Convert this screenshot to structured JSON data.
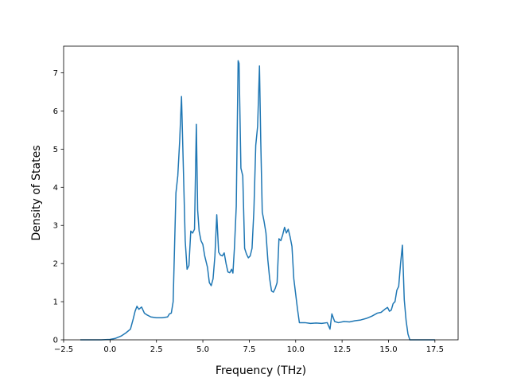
{
  "chart_data": {
    "type": "line",
    "title": "",
    "xlabel": "Frequency (THz)",
    "ylabel": "Density of States",
    "xlim": [
      -2.5,
      18.75
    ],
    "ylim": [
      0,
      7.7
    ],
    "xticks": [
      -2.5,
      0.0,
      2.5,
      5.0,
      7.5,
      10.0,
      12.5,
      15.0,
      17.5
    ],
    "xtick_labels": [
      "−2.5",
      "0.0",
      "2.5",
      "5.0",
      "7.5",
      "10.0",
      "12.5",
      "15.0",
      "17.5"
    ],
    "yticks": [
      0,
      1,
      2,
      3,
      4,
      5,
      6,
      7
    ],
    "ytick_labels": [
      "0",
      "1",
      "2",
      "3",
      "4",
      "5",
      "6",
      "7"
    ],
    "grid": false,
    "legend": "none",
    "line_color": "#1f77b4",
    "series": [
      {
        "x": [
          -1.6,
          -1.0,
          -0.5,
          0.0,
          0.3,
          0.6,
          0.85,
          1.1,
          1.25,
          1.35,
          1.45,
          1.55,
          1.7,
          1.85,
          2.0,
          2.2,
          2.5,
          2.8,
          3.1,
          3.2,
          3.3,
          3.4,
          3.55,
          3.65,
          3.75,
          3.85,
          3.95,
          4.05,
          4.15,
          4.25,
          4.35,
          4.45,
          4.55,
          4.65,
          4.72,
          4.8,
          4.9,
          5.0,
          5.1,
          5.25,
          5.35,
          5.45,
          5.55,
          5.65,
          5.75,
          5.85,
          5.95,
          6.05,
          6.15,
          6.25,
          6.35,
          6.45,
          6.55,
          6.62,
          6.7,
          6.8,
          6.9,
          6.95,
          7.05,
          7.15,
          7.25,
          7.35,
          7.45,
          7.55,
          7.65,
          7.75,
          7.85,
          7.95,
          8.05,
          8.12,
          8.2,
          8.3,
          8.4,
          8.5,
          8.6,
          8.7,
          8.8,
          8.9,
          9.0,
          9.1,
          9.2,
          9.3,
          9.4,
          9.5,
          9.6,
          9.7,
          9.8,
          9.9,
          10.0,
          10.1,
          10.2,
          10.5,
          10.8,
          11.1,
          11.4,
          11.7,
          11.85,
          11.95,
          12.1,
          12.3,
          12.6,
          12.9,
          13.2,
          13.5,
          13.8,
          14.1,
          14.4,
          14.6,
          14.8,
          14.95,
          15.05,
          15.15,
          15.25,
          15.35,
          15.45,
          15.55,
          15.65,
          15.75,
          15.85,
          15.95,
          16.05,
          16.15,
          16.5,
          17.0,
          17.5
        ],
        "y": [
          0.0,
          0.0,
          0.0,
          0.01,
          0.04,
          0.1,
          0.18,
          0.28,
          0.55,
          0.75,
          0.88,
          0.8,
          0.86,
          0.7,
          0.65,
          0.6,
          0.58,
          0.58,
          0.6,
          0.68,
          0.7,
          1.0,
          3.85,
          4.3,
          5.2,
          6.38,
          4.5,
          2.6,
          1.85,
          1.95,
          2.85,
          2.8,
          2.9,
          5.65,
          3.4,
          2.85,
          2.6,
          2.5,
          2.2,
          1.9,
          1.5,
          1.42,
          1.6,
          2.2,
          3.28,
          2.3,
          2.22,
          2.2,
          2.28,
          2.0,
          1.78,
          1.76,
          1.85,
          1.75,
          2.4,
          3.5,
          7.32,
          7.25,
          4.5,
          4.3,
          2.4,
          2.25,
          2.15,
          2.2,
          2.4,
          3.4,
          5.1,
          5.6,
          7.18,
          5.2,
          3.35,
          3.1,
          2.8,
          2.1,
          1.6,
          1.28,
          1.25,
          1.35,
          1.5,
          2.65,
          2.6,
          2.75,
          2.95,
          2.8,
          2.9,
          2.7,
          2.45,
          1.6,
          1.2,
          0.8,
          0.45,
          0.45,
          0.43,
          0.44,
          0.43,
          0.45,
          0.28,
          0.68,
          0.48,
          0.45,
          0.48,
          0.47,
          0.5,
          0.52,
          0.56,
          0.62,
          0.7,
          0.72,
          0.8,
          0.85,
          0.75,
          0.78,
          0.95,
          1.0,
          1.3,
          1.4,
          2.0,
          2.48,
          1.05,
          0.5,
          0.15,
          0.0,
          0.0,
          0.0,
          0.0
        ]
      }
    ]
  }
}
